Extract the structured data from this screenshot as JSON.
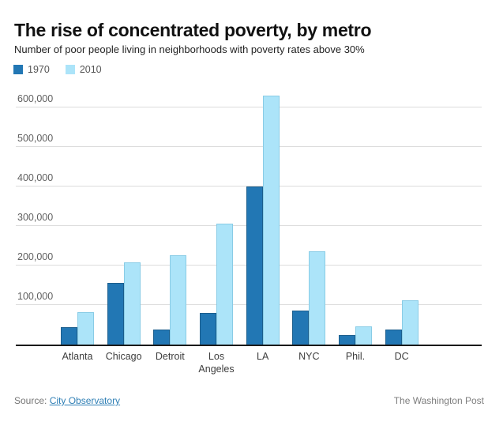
{
  "header": {
    "title": "The rise of concentrated poverty, by metro",
    "subtitle": "Number of poor people living in neighborhoods with poverty rates above 30%"
  },
  "colors": {
    "series_1970": "#2277b4",
    "series_2010": "#ace4f9",
    "gridline": "#dcdcdc",
    "axis": "#1a1a1a"
  },
  "chart_data": {
    "type": "bar",
    "title": "The rise of concentrated poverty, by metro",
    "subtitle": "Number of poor people living in neighborhoods with poverty rates above 30%",
    "categories": [
      "Atlanta",
      "Chicago",
      "Detroit",
      "Los Angeles",
      "LA",
      "NYC",
      "Phil.",
      "DC"
    ],
    "category_lines": [
      [
        "Atlanta"
      ],
      [
        "Chicago"
      ],
      [
        "Detroit"
      ],
      [
        "Los",
        "Angeles"
      ],
      [
        "LA"
      ],
      [
        "NYC"
      ],
      [
        "Phil."
      ],
      [
        "DC"
      ]
    ],
    "series": [
      {
        "name": "1970",
        "color": "#2277b4",
        "values": [
          43000,
          156000,
          37000,
          80000,
          400000,
          86000,
          24000,
          38000
        ]
      },
      {
        "name": "2010",
        "color": "#ace4f9",
        "values": [
          82000,
          208000,
          225000,
          306000,
          630000,
          236000,
          45000,
          112000
        ]
      }
    ],
    "xlabel": "",
    "ylabel": "",
    "ylim": [
      0,
      640000
    ],
    "y_ticks": [
      {
        "value": 100000,
        "label": "100,000"
      },
      {
        "value": 200000,
        "label": "200,000"
      },
      {
        "value": 300000,
        "label": "300,000"
      },
      {
        "value": 400000,
        "label": "400,000"
      },
      {
        "value": 500000,
        "label": "500,000"
      },
      {
        "value": 600000,
        "label": "600,000"
      }
    ],
    "grid": "horizontal",
    "legend_position": "top-left"
  },
  "footer": {
    "source_prefix": "Source:",
    "source_link": "City Observatory",
    "credit": "The Washington Post"
  }
}
